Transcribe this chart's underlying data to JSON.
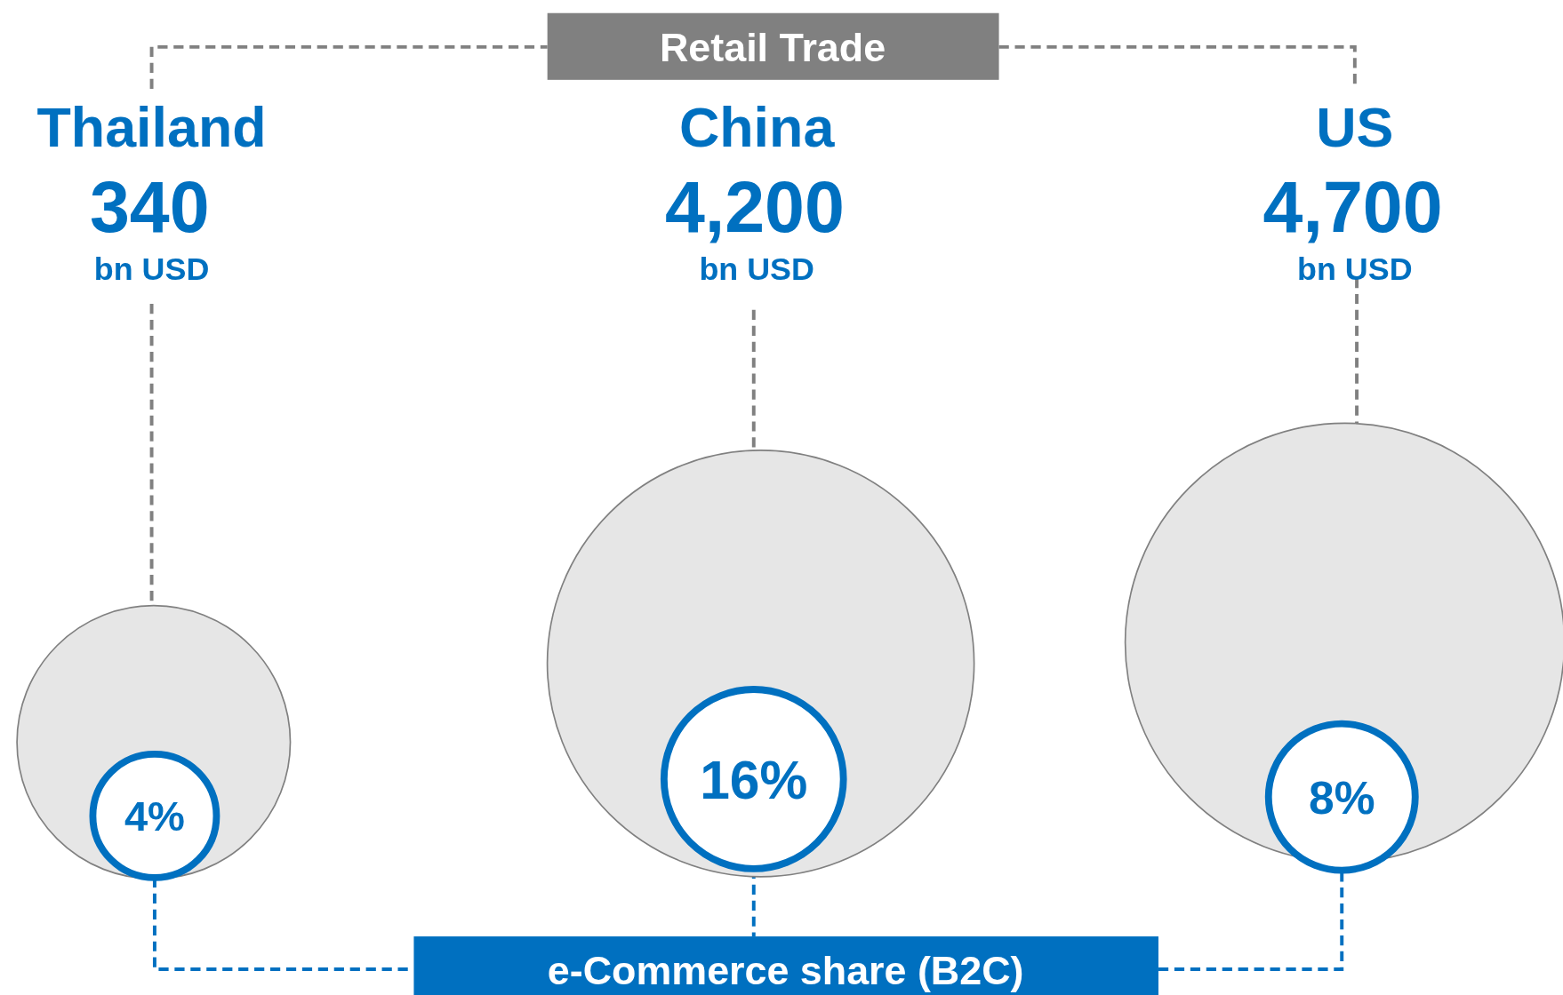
{
  "chart_data": {
    "type": "other",
    "categories": [
      "Thailand",
      "China",
      "US"
    ],
    "ylabel": "bn USD",
    "series": [
      {
        "name": "Retail Trade",
        "color": "#e6e6e6",
        "values": [
          340,
          4200,
          4700
        ],
        "value_labels": [
          "340",
          "4,200",
          "4,700"
        ]
      },
      {
        "name": "e-Commerce share (B2C)",
        "color": "#0070c0",
        "values": [
          4,
          16,
          8
        ],
        "value_labels": [
          "4%",
          "16%",
          "8%"
        ]
      }
    ]
  }
}
